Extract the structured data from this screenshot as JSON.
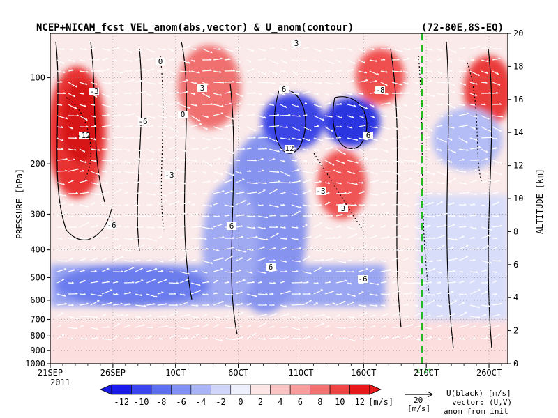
{
  "chart_data": {
    "type": "heatmap",
    "title": "NCEP+NICAM_fcst VEL_anom(abs,vector) & U_anom(contour)",
    "region": "(72-80E,8S-EQ)",
    "ylabel_left": "PRESSURE [hPa]",
    "ylabel_right": "ALTITUDE [km]",
    "pressure_ticks": [
      "100",
      "200",
      "300",
      "400",
      "500",
      "600",
      "700",
      "800",
      "900",
      "1000"
    ],
    "altitude_ticks": [
      "0",
      "2",
      "4",
      "6",
      "8",
      "10",
      "12",
      "14",
      "16",
      "18",
      "20"
    ],
    "date_ticks": [
      "21SEP",
      "26SEP",
      "1OCT",
      "6OCT",
      "11OCT",
      "16OCT",
      "21OCT",
      "26OCT"
    ],
    "year_label": "2011",
    "init_label": "init",
    "ylim_pressure": [
      1000,
      70
    ],
    "ylim_altitude": [
      0,
      20
    ],
    "colorbar": {
      "levels": [
        "-12",
        "-10",
        "-8",
        "-6",
        "-4",
        "-2",
        "0",
        "2",
        "4",
        "6",
        "8",
        "10",
        "12"
      ],
      "unit": "[m/s]",
      "colors": [
        "#1a1ae6",
        "#3a45f0",
        "#5c6ef2",
        "#8190f4",
        "#a8b4f6",
        "#cfd6fa",
        "#eef0fd",
        "#fde6e6",
        "#fbc4c4",
        "#f89c9c",
        "#f47070",
        "#ef4545",
        "#e61a1a"
      ]
    },
    "vector_legend": {
      "value": "20",
      "unit": "[m/s]",
      "line1": "U(black) [m/s]",
      "line2": "vector: (U,V)",
      "line3": "anom from init"
    },
    "contour_labels": [
      "3",
      "0",
      "-3",
      "6",
      "-6",
      "-12",
      "12",
      "-8",
      "0",
      "3",
      "-3",
      "6",
      "6",
      "-6",
      "6",
      "3",
      "-3",
      "-6"
    ],
    "grid": true,
    "colors": {
      "positive": "#e61a1a",
      "negative": "#1a1ae6",
      "vectors": "#ffffff",
      "init_line": "#22bb22"
    }
  }
}
